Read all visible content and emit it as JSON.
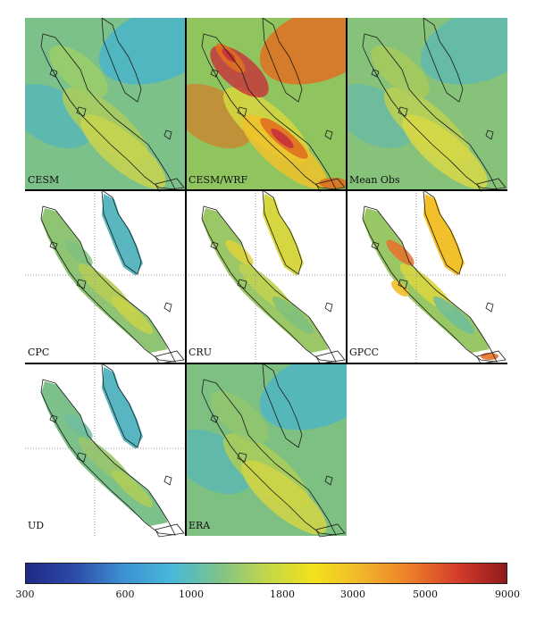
{
  "panels": [
    {
      "label": "CESM",
      "kind": "full",
      "palette": [
        "#7cc08a",
        "#a8cc5e",
        "#c9d44e",
        "#49b4c8",
        "#9ccd66"
      ]
    },
    {
      "label": "CESM/WRF",
      "kind": "full",
      "palette": [
        "#8fc45e",
        "#d4d640",
        "#f0c22a",
        "#e07020",
        "#c8303a"
      ]
    },
    {
      "label": "Mean Obs",
      "kind": "full",
      "palette": [
        "#86c27a",
        "#b8cf55",
        "#d7d845",
        "#5fb8b0",
        "#a9cb5a"
      ]
    },
    {
      "label": "CPC",
      "kind": "masked",
      "palette": [
        "#8ec473",
        "#b5cd57",
        "#5ab6bf",
        "#c9d44a",
        "#7fc17f"
      ]
    },
    {
      "label": "CRU",
      "kind": "masked",
      "palette": [
        "#9bc766",
        "#bfd250",
        "#d6d640",
        "#7dc07f",
        "#e0d23a"
      ]
    },
    {
      "label": "GPCC",
      "kind": "masked",
      "palette": [
        "#9ac765",
        "#d8d63f",
        "#f1c02a",
        "#6cbc9b",
        "#e8702a"
      ]
    },
    {
      "label": "UD",
      "kind": "masked-light",
      "palette": [
        "#7cc08a",
        "#98c76c",
        "#58b6c2",
        "#b0cc58",
        "#6fbda0"
      ]
    },
    {
      "label": "ERA",
      "kind": "full",
      "palette": [
        "#7dc081",
        "#a9cc5b",
        "#d2d545",
        "#4fb5c4",
        "#94c66d"
      ]
    }
  ],
  "colorbar": {
    "ticks": [
      "300",
      "600",
      "1000",
      "1800",
      "3000",
      "5000",
      "9000"
    ],
    "stops": [
      "#1f2a86",
      "#2c4aa8",
      "#3d8fd0",
      "#46b7dc",
      "#7cc38a",
      "#c2d64a",
      "#f2e21c",
      "#f1b52a",
      "#ec7d2a",
      "#d43c2a",
      "#8e1a1a"
    ]
  }
}
